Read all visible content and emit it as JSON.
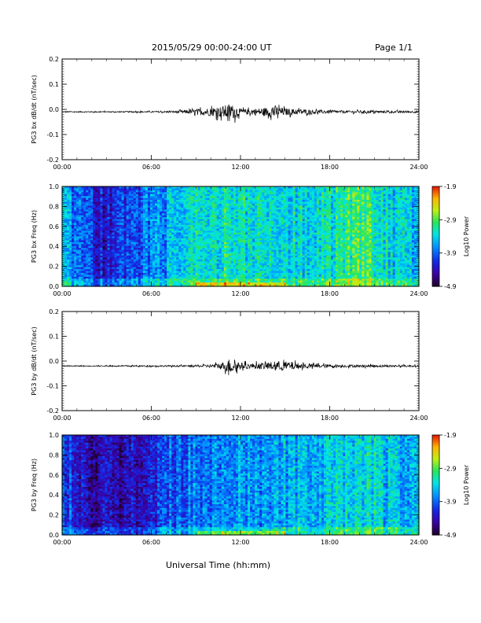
{
  "header": {
    "date_range": "2015/05/29  00:00-24:00 UT",
    "page": "Page 1/1"
  },
  "xlabel": "Universal Time (hh:mm)",
  "chart_data": [
    {
      "id": "bx-dbdt",
      "type": "line",
      "ylabel": "PG3 bx dB/dt (nT/sec)",
      "x_range": [
        0,
        24
      ],
      "x_ticks": [
        "00:00",
        "06:00",
        "12:00",
        "18:00",
        "24:00"
      ],
      "ylim": [
        -0.2,
        0.2
      ],
      "y_ticks": [
        -0.2,
        -0.1,
        0.0,
        0.1,
        0.2
      ],
      "y_tick_labels": [
        "-0.2",
        "-0.1",
        "0.0",
        "0.1",
        "0.2"
      ],
      "baseline": -0.01,
      "series": [
        {
          "x": [
            0,
            2,
            4,
            6,
            7,
            8,
            8.5,
            9,
            9.5,
            10,
            10.5,
            11,
            11.25,
            11.5,
            11.75,
            12,
            12.5,
            13,
            13.5,
            14,
            14.25,
            14.5,
            15,
            16,
            17,
            18,
            19,
            20,
            21,
            22,
            23,
            24
          ],
          "amplitude": [
            0.004,
            0.004,
            0.004,
            0.005,
            0.006,
            0.01,
            0.015,
            0.02,
            0.025,
            0.03,
            0.035,
            0.05,
            0.06,
            0.05,
            0.04,
            0.02,
            0.02,
            0.025,
            0.03,
            0.035,
            0.05,
            0.04,
            0.025,
            0.02,
            0.015,
            0.012,
            0.01,
            0.01,
            0.009,
            0.008,
            0.008,
            0.007
          ]
        }
      ]
    },
    {
      "id": "bx-spec",
      "type": "heatmap",
      "ylabel": "PG3 bx Freq (Hz)",
      "x_range": [
        0,
        24
      ],
      "x_ticks": [
        "00:00",
        "06:00",
        "12:00",
        "18:00",
        "24:00"
      ],
      "ylim": [
        0,
        1.0
      ],
      "y_ticks": [
        0.0,
        0.2,
        0.4,
        0.6,
        0.8,
        1.0
      ],
      "y_tick_labels": [
        "0.0",
        "0.2",
        "0.4",
        "0.6",
        "0.8",
        "1.0"
      ],
      "colorbar": {
        "label": "Log10 Power",
        "min": -4.9,
        "max": -1.9,
        "ticks": [
          "-1.9",
          "-2.9",
          "-3.9",
          "-4.9"
        ]
      },
      "profile_x": [
        0,
        1,
        2,
        3,
        4,
        5,
        6,
        7,
        8,
        9,
        10,
        11,
        12,
        13,
        14,
        15,
        16,
        17,
        18,
        19,
        20,
        21,
        22,
        23,
        24
      ],
      "profile_level": [
        0.42,
        0.32,
        0.22,
        0.2,
        0.25,
        0.3,
        0.36,
        0.42,
        0.48,
        0.5,
        0.52,
        0.55,
        0.55,
        0.52,
        0.5,
        0.52,
        0.5,
        0.52,
        0.54,
        0.58,
        0.64,
        0.58,
        0.52,
        0.48,
        0.46
      ]
    },
    {
      "id": "by-dbdt",
      "type": "line",
      "ylabel": "PG3 by dB/dt (nT/sec)",
      "x_range": [
        0,
        24
      ],
      "x_ticks": [
        "00:00",
        "06:00",
        "12:00",
        "18:00",
        "24:00"
      ],
      "ylim": [
        -0.2,
        0.2
      ],
      "y_ticks": [
        -0.2,
        -0.1,
        0.0,
        0.1,
        0.2
      ],
      "y_tick_labels": [
        "-0.2",
        "-0.1",
        "0.0",
        "0.1",
        "0.2"
      ],
      "baseline": -0.02,
      "series": [
        {
          "x": [
            0,
            2,
            4,
            6,
            7,
            8,
            9,
            10,
            10.5,
            11,
            11.25,
            11.5,
            11.75,
            12,
            12.5,
            13,
            13.5,
            14,
            14.5,
            15,
            15.5,
            16,
            17,
            18,
            19,
            20,
            21,
            22,
            23,
            24
          ],
          "amplitude": [
            0.004,
            0.004,
            0.004,
            0.005,
            0.005,
            0.006,
            0.008,
            0.012,
            0.02,
            0.035,
            0.055,
            0.05,
            0.04,
            0.025,
            0.02,
            0.02,
            0.025,
            0.03,
            0.035,
            0.035,
            0.03,
            0.02,
            0.015,
            0.012,
            0.01,
            0.009,
            0.008,
            0.008,
            0.007,
            0.007
          ]
        }
      ]
    },
    {
      "id": "by-spec",
      "type": "heatmap",
      "ylabel": "PG3 by Freq (Hz)",
      "x_range": [
        0,
        24
      ],
      "x_ticks": [
        "00:00",
        "06:00",
        "12:00",
        "18:00",
        "24:00"
      ],
      "ylim": [
        0,
        1.0
      ],
      "y_ticks": [
        0.0,
        0.2,
        0.4,
        0.6,
        0.8,
        1.0
      ],
      "y_tick_labels": [
        "0.0",
        "0.2",
        "0.4",
        "0.6",
        "0.8",
        "1.0"
      ],
      "colorbar": {
        "label": "Log10 Power",
        "min": -4.9,
        "max": -1.9,
        "ticks": [
          "-1.9",
          "-2.9",
          "-3.9",
          "-4.9"
        ]
      },
      "profile_x": [
        0,
        1,
        2,
        3,
        4,
        5,
        6,
        7,
        8,
        9,
        10,
        11,
        12,
        13,
        14,
        15,
        16,
        17,
        18,
        19,
        20,
        21,
        22,
        23,
        24
      ],
      "profile_level": [
        0.32,
        0.22,
        0.15,
        0.12,
        0.16,
        0.2,
        0.24,
        0.28,
        0.32,
        0.35,
        0.38,
        0.4,
        0.42,
        0.4,
        0.4,
        0.42,
        0.43,
        0.45,
        0.47,
        0.5,
        0.52,
        0.5,
        0.46,
        0.44,
        0.42
      ]
    }
  ]
}
